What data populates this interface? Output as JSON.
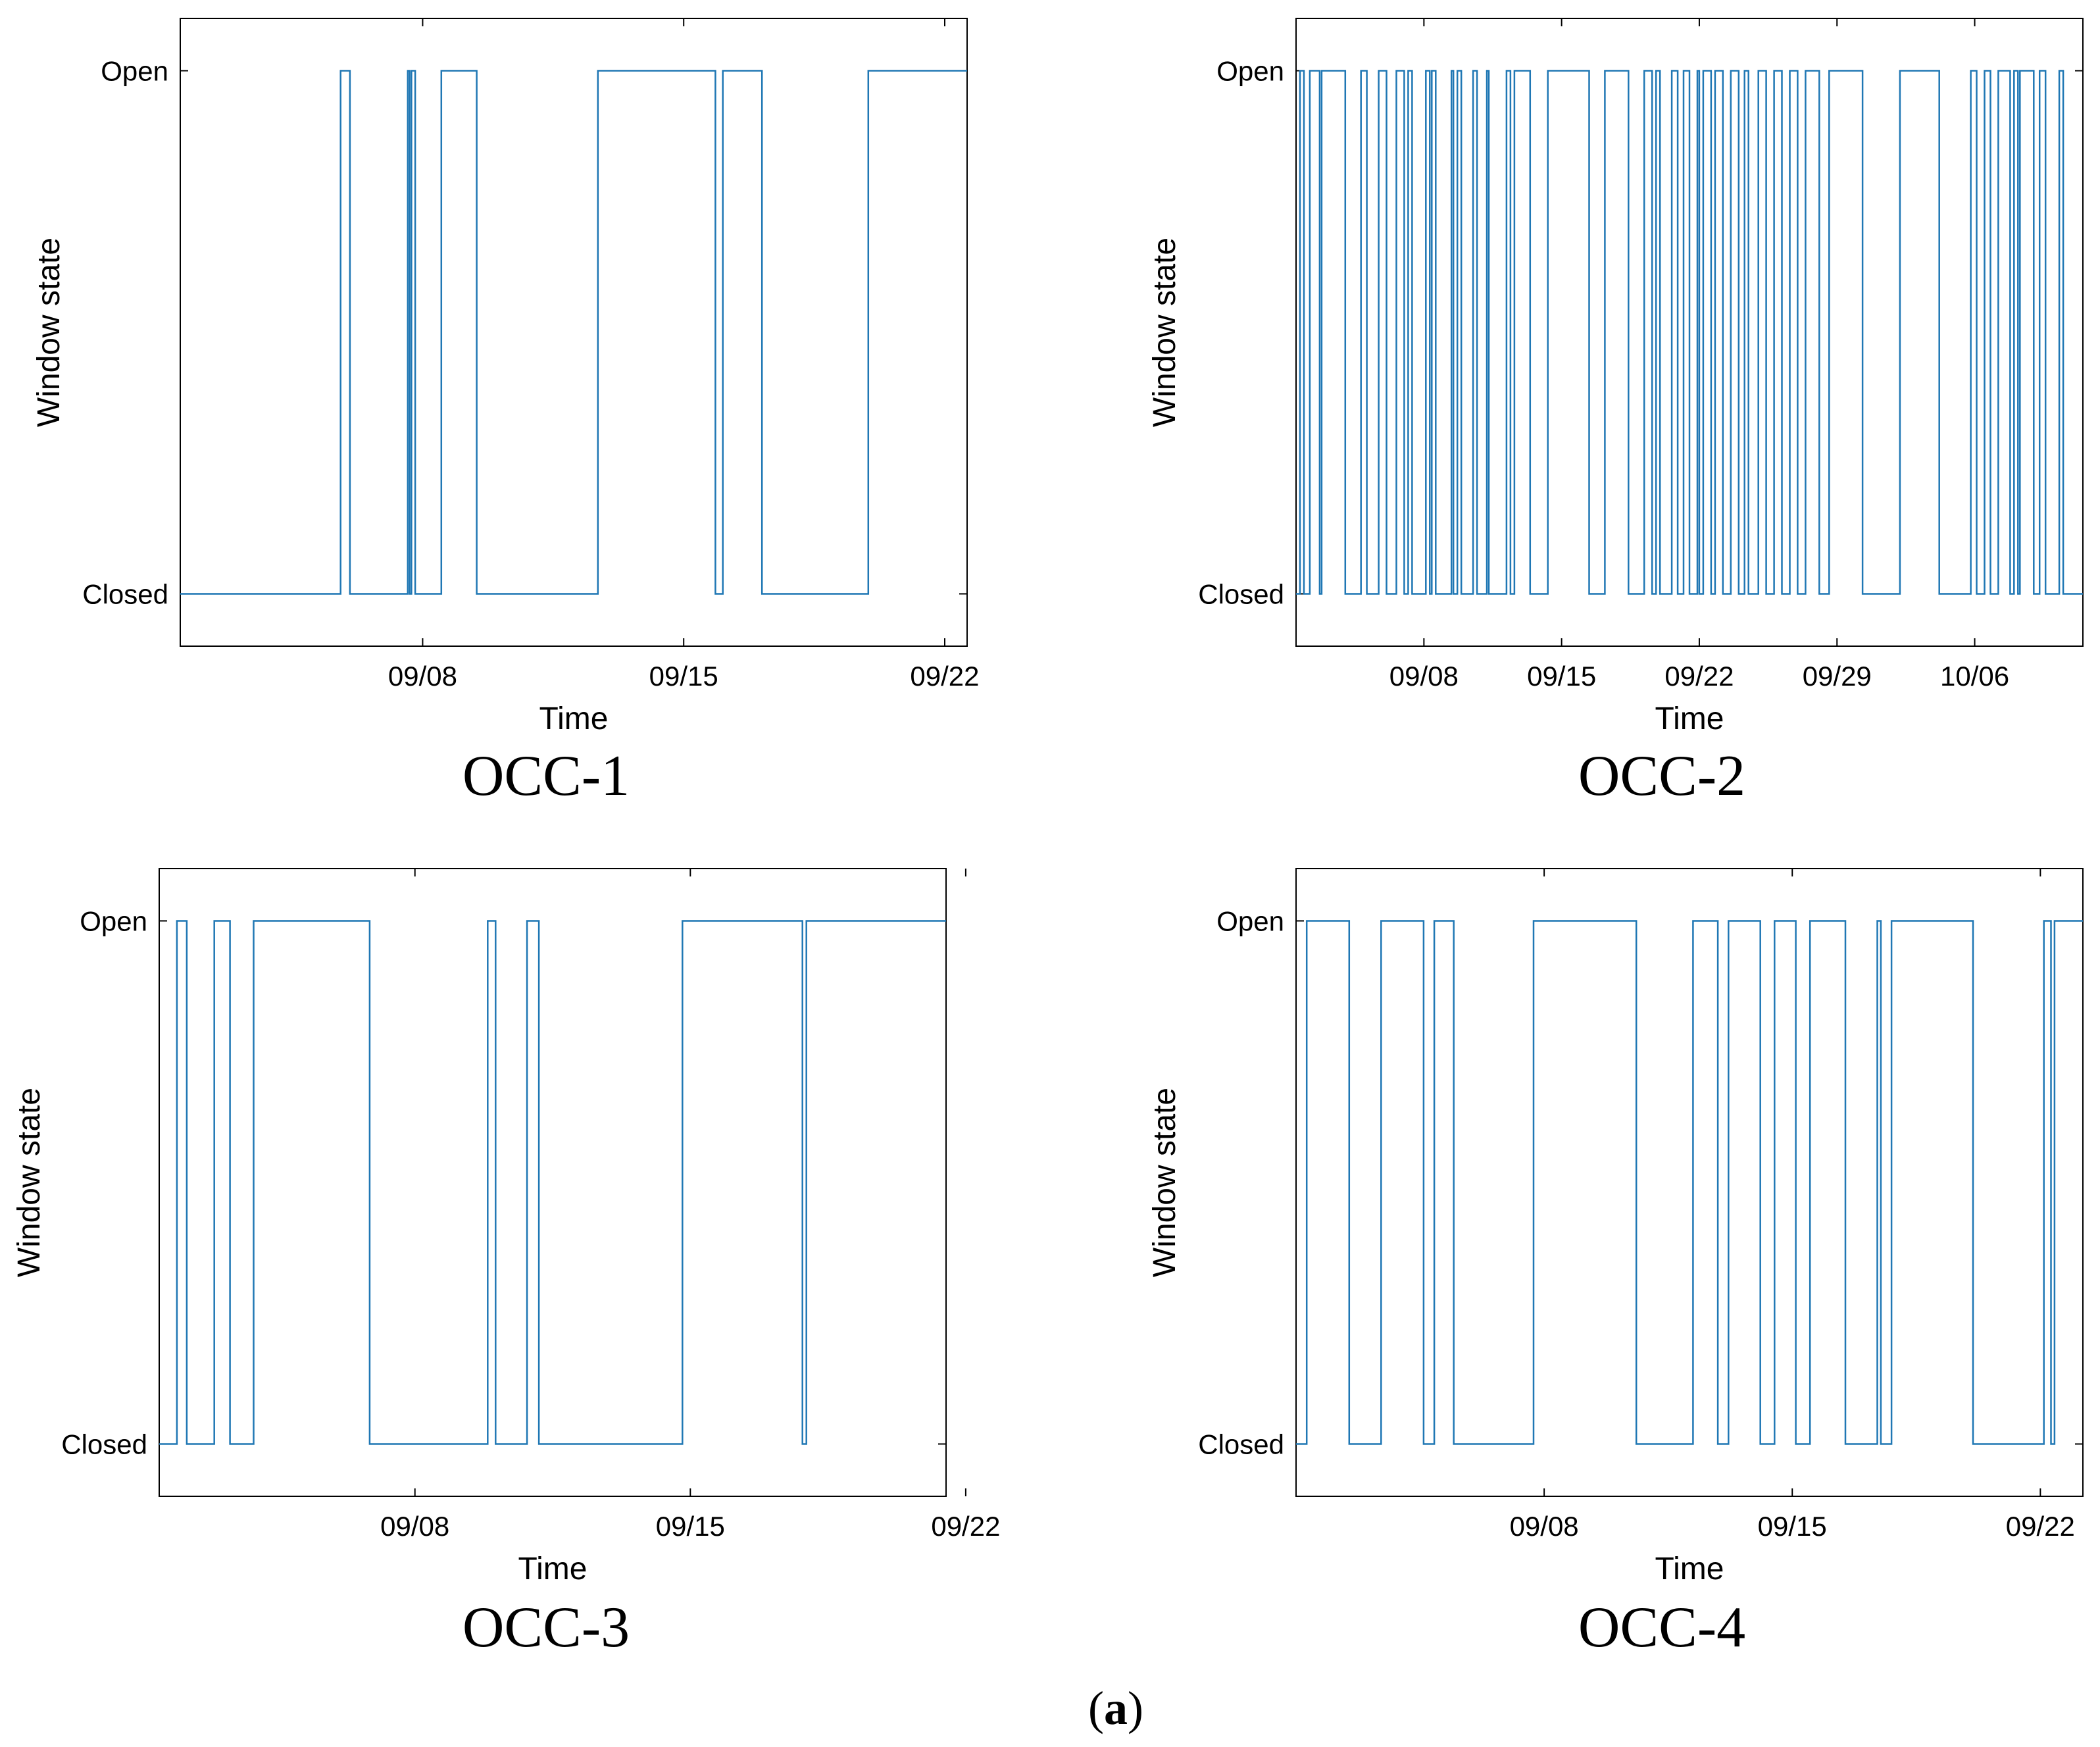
{
  "figure": {
    "label_open": "(",
    "label_letter": "a",
    "label_close": ")"
  },
  "chart_data": [
    {
      "type": "line",
      "step": true,
      "title": "OCC-1",
      "xlabel": "Time",
      "ylabel": "Window state",
      "x_unit": "day of September",
      "xlim": [
        1.5,
        22.6
      ],
      "ylim": [
        -0.1,
        1.1
      ],
      "yticks": [
        {
          "value": 0,
          "label": "Closed"
        },
        {
          "value": 1,
          "label": "Open"
        }
      ],
      "xticks": [
        {
          "value": 8,
          "label": "09/08"
        },
        {
          "value": 15,
          "label": "09/15"
        },
        {
          "value": 22,
          "label": "09/22"
        }
      ],
      "series": [
        {
          "name": "window state",
          "color": "#1f77b4",
          "open_intervals": [
            [
              5.8,
              6.05
            ],
            [
              7.6,
              7.65
            ],
            [
              7.7,
              7.8
            ],
            [
              8.5,
              9.45
            ],
            [
              12.7,
              15.85
            ],
            [
              16.05,
              17.1
            ],
            [
              19.95,
              22.6
            ]
          ]
        }
      ]
    },
    {
      "type": "line",
      "step": true,
      "title": "OCC-2",
      "xlabel": "Time",
      "ylabel": "Window state",
      "x_unit": "day of September",
      "xlim": [
        1.5,
        41.5
      ],
      "ylim": [
        -0.1,
        1.1
      ],
      "yticks": [
        {
          "value": 0,
          "label": "Closed"
        },
        {
          "value": 1,
          "label": "Open"
        }
      ],
      "xticks": [
        {
          "value": 8,
          "label": "09/08"
        },
        {
          "value": 15,
          "label": "09/15"
        },
        {
          "value": 22,
          "label": "09/22"
        },
        {
          "value": 29,
          "label": "09/29"
        },
        {
          "value": 36,
          "label": "10/06"
        }
      ],
      "series": [
        {
          "name": "window state",
          "color": "#1f77b4",
          "open_intervals": [
            [
              1.7,
              1.9
            ],
            [
              2.2,
              2.7
            ],
            [
              2.8,
              4.0
            ],
            [
              4.8,
              5.1
            ],
            [
              5.7,
              6.1
            ],
            [
              6.6,
              7.0
            ],
            [
              7.2,
              7.4
            ],
            [
              8.1,
              8.3
            ],
            [
              8.4,
              8.6
            ],
            [
              9.4,
              9.5
            ],
            [
              9.7,
              9.9
            ],
            [
              10.5,
              10.7
            ],
            [
              11.2,
              11.3
            ],
            [
              12.2,
              12.4
            ],
            [
              12.6,
              13.4
            ],
            [
              14.3,
              16.4
            ],
            [
              17.2,
              18.4
            ],
            [
              19.2,
              19.6
            ],
            [
              19.8,
              20.0
            ],
            [
              20.6,
              20.9
            ],
            [
              21.2,
              21.5
            ],
            [
              21.9,
              22.0
            ],
            [
              22.2,
              22.6
            ],
            [
              22.8,
              23.2
            ],
            [
              23.6,
              24.0
            ],
            [
              24.3,
              24.5
            ],
            [
              25.0,
              25.4
            ],
            [
              25.8,
              26.2
            ],
            [
              26.6,
              27.0
            ],
            [
              27.4,
              28.1
            ],
            [
              28.6,
              30.3
            ],
            [
              32.2,
              34.2
            ],
            [
              35.8,
              36.1
            ],
            [
              36.5,
              36.8
            ],
            [
              37.2,
              37.8
            ],
            [
              38.0,
              38.2
            ],
            [
              38.3,
              39.0
            ],
            [
              39.3,
              39.6
            ],
            [
              40.3,
              40.5
            ]
          ]
        }
      ]
    },
    {
      "type": "line",
      "step": true,
      "title": "OCC-3",
      "xlabel": "Time",
      "ylabel": "Window state",
      "x_unit": "day of September",
      "xlim": [
        1.5,
        21.5
      ],
      "ylim": [
        -0.1,
        1.1
      ],
      "yticks": [
        {
          "value": 0,
          "label": "Closed"
        },
        {
          "value": 1,
          "label": "Open"
        }
      ],
      "xticks": [
        {
          "value": 8,
          "label": "09/08"
        },
        {
          "value": 15,
          "label": "09/15"
        },
        {
          "value": 22,
          "label": "09/22"
        }
      ],
      "series": [
        {
          "name": "window state",
          "color": "#1f77b4",
          "open_intervals": [
            [
              1.95,
              2.2
            ],
            [
              2.9,
              3.3
            ],
            [
              3.9,
              6.85
            ],
            [
              9.85,
              10.05
            ],
            [
              10.85,
              11.15
            ],
            [
              14.8,
              17.85
            ],
            [
              17.95,
              21.5
            ]
          ]
        }
      ]
    },
    {
      "type": "line",
      "step": true,
      "title": "OCC-4",
      "xlabel": "Time",
      "ylabel": "Window state",
      "x_unit": "day of September",
      "xlim": [
        1.0,
        23.2
      ],
      "ylim": [
        -0.1,
        1.1
      ],
      "yticks": [
        {
          "value": 0,
          "label": "Closed"
        },
        {
          "value": 1,
          "label": "Open"
        }
      ],
      "xticks": [
        {
          "value": 8,
          "label": "09/08"
        },
        {
          "value": 15,
          "label": "09/15"
        },
        {
          "value": 22,
          "label": "09/22"
        }
      ],
      "series": [
        {
          "name": "window state",
          "color": "#1f77b4",
          "open_intervals": [
            [
              1.3,
              2.5
            ],
            [
              3.4,
              4.6
            ],
            [
              4.9,
              5.45
            ],
            [
              7.7,
              10.6
            ],
            [
              12.2,
              12.9
            ],
            [
              13.2,
              14.1
            ],
            [
              14.5,
              15.1
            ],
            [
              15.5,
              16.5
            ],
            [
              17.4,
              17.5
            ],
            [
              17.8,
              20.1
            ],
            [
              22.1,
              22.3
            ],
            [
              22.4,
              23.2
            ]
          ]
        }
      ]
    }
  ]
}
